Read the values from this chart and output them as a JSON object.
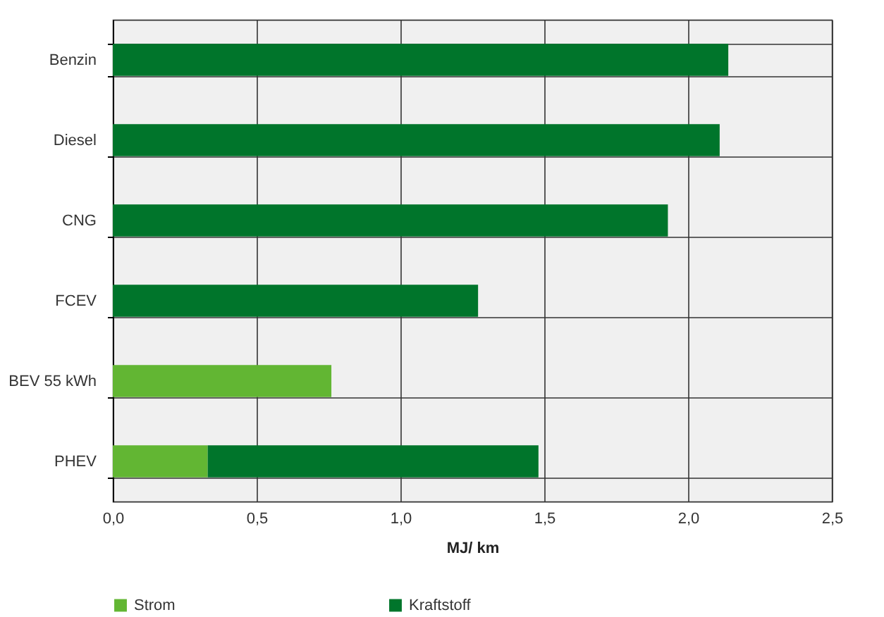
{
  "chart_data": {
    "type": "bar",
    "orientation": "horizontal",
    "stacked": true,
    "xlabel": "MJ/ km",
    "categories": [
      "Benzin",
      "Diesel",
      "CNG",
      "FCEV",
      "BEV 55 kWh",
      "PHEV"
    ],
    "series": [
      {
        "name": "Strom",
        "color": "#62b633",
        "values": [
          null,
          null,
          null,
          null,
          0.76,
          0.33
        ]
      },
      {
        "name": "Kraftstoff",
        "color": "#00752b",
        "values": [
          2.14,
          2.11,
          1.93,
          1.27,
          null,
          1.15
        ]
      }
    ],
    "xlim": [
      0,
      2.5
    ],
    "xticks": [
      {
        "value": 0,
        "label": "0,0"
      },
      {
        "value": 0.5,
        "label": "0,5"
      },
      {
        "value": 1,
        "label": "1,0"
      },
      {
        "value": 1.5,
        "label": "1,5"
      },
      {
        "value": 2,
        "label": "2,0"
      },
      {
        "value": 2.5,
        "label": "2,5"
      }
    ],
    "grid": true,
    "legend": "bottom"
  }
}
